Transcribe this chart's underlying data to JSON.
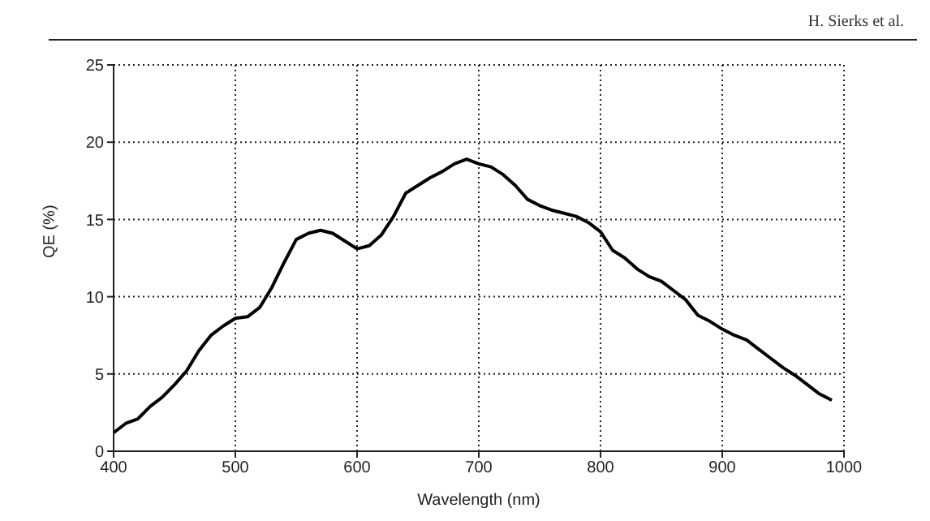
{
  "chart_data": {
    "type": "line",
    "xlabel": "Wavelength (nm)",
    "ylabel": "QE (%)",
    "annotations": [
      "H. Sierks et al."
    ],
    "x": [
      400,
      410,
      420,
      430,
      440,
      450,
      460,
      470,
      480,
      490,
      500,
      510,
      520,
      530,
      540,
      550,
      560,
      570,
      580,
      590,
      600,
      610,
      620,
      630,
      640,
      650,
      660,
      670,
      680,
      690,
      700,
      710,
      720,
      730,
      740,
      750,
      760,
      770,
      780,
      790,
      800,
      810,
      820,
      830,
      840,
      850,
      860,
      870,
      880,
      890,
      900,
      910,
      920,
      930,
      940,
      950,
      960,
      970,
      980,
      990
    ],
    "series": [
      {
        "color": "#000000",
        "values": [
          1.2,
          1.8,
          2.1,
          2.9,
          3.5,
          4.3,
          5.2,
          6.5,
          7.5,
          8.1,
          8.6,
          8.7,
          9.3,
          10.6,
          12.2,
          13.7,
          14.1,
          14.3,
          14.1,
          13.6,
          13.1,
          13.3,
          14.0,
          15.2,
          16.7,
          17.2,
          17.7,
          18.1,
          18.6,
          18.9,
          18.6,
          18.4,
          17.9,
          17.2,
          16.3,
          15.9,
          15.6,
          15.4,
          15.2,
          14.8,
          14.2,
          13.0,
          12.5,
          11.8,
          11.3,
          11.0,
          10.4,
          9.8,
          8.8,
          8.4,
          7.9,
          7.5,
          7.2,
          6.6,
          6.0,
          5.4,
          4.9,
          4.3,
          3.7,
          3.3
        ]
      }
    ],
    "xlim": [
      400,
      1000
    ],
    "xticks": [
      400,
      500,
      600,
      700,
      800,
      900,
      1000
    ],
    "ylim": [
      0,
      25
    ],
    "yticks": [
      0,
      5,
      10,
      15,
      20,
      25
    ],
    "grid": true,
    "marker": "none",
    "line_style": "solid"
  }
}
